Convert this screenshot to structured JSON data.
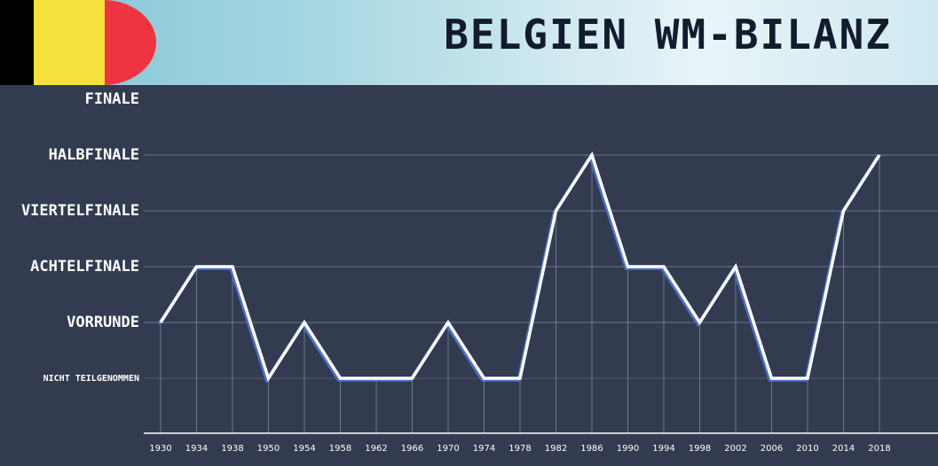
{
  "header": {
    "title": "BELGIEN WM-BILANZ",
    "flag_colors": [
      "#000000",
      "#f5e13b",
      "#ef3340"
    ]
  },
  "chart_data": {
    "type": "line",
    "title": "BELGIEN WM-BILANZ",
    "xlabel": "",
    "ylabel": "",
    "y_levels": [
      "NICHT TEILGENOMMEN",
      "VORRUNDE",
      "ACHTELFINALE",
      "VIERTELFINALE",
      "HALBFINALE",
      "FINALE"
    ],
    "x": [
      "1930",
      "1934",
      "1938",
      "1950",
      "1954",
      "1958",
      "1962",
      "1966",
      "1970",
      "1974",
      "1978",
      "1982",
      "1986",
      "1990",
      "1994",
      "1998",
      "2002",
      "2006",
      "2010",
      "2014",
      "2018"
    ],
    "series": [
      {
        "values": [
          "VORRUNDE",
          "ACHTELFINALE",
          "ACHTELFINALE",
          "NICHT TEILGENOMMEN",
          "VORRUNDE",
          "NICHT TEILGENOMMEN",
          "NICHT TEILGENOMMEN",
          "NICHT TEILGENOMMEN",
          "VORRUNDE",
          "NICHT TEILGENOMMEN",
          "NICHT TEILGENOMMEN",
          "VIERTELFINALE",
          "HALBFINALE",
          "ACHTELFINALE",
          "ACHTELFINALE",
          "VORRUNDE",
          "ACHTELFINALE",
          "NICHT TEILGENOMMEN",
          "NICHT TEILGENOMMEN",
          "VIERTELFINALE",
          "HALBFINALE"
        ]
      }
    ],
    "grid": true,
    "colors": {
      "line": "#ffffff",
      "line_shadow": "#4a6fd1",
      "background": "#323b4f",
      "grid": "#6c7588",
      "axis": "#ffffff"
    }
  }
}
